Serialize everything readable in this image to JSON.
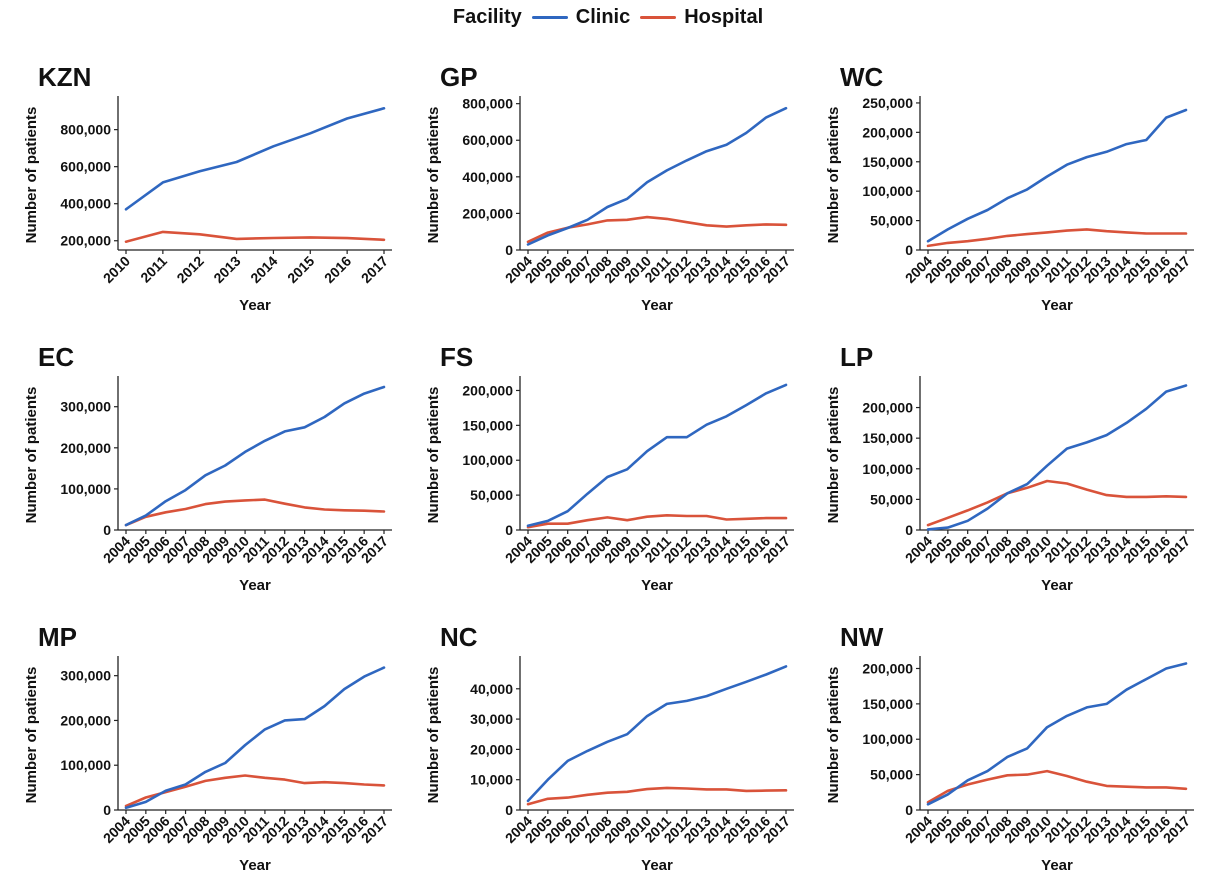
{
  "legend": {
    "title": "Facility",
    "items": [
      {
        "name": "Clinic",
        "color": "#2f67c0"
      },
      {
        "name": "Hospital",
        "color": "#d9533a"
      }
    ]
  },
  "chart_data": [
    {
      "type": "line",
      "title": "KZN",
      "xlabel": "Year",
      "ylabel": "Number of patients",
      "x": [
        2010,
        2011,
        2012,
        2013,
        2014,
        2015,
        2016,
        2017
      ],
      "ylim": [
        150000,
        960000
      ],
      "yticks": [
        200000,
        400000,
        600000,
        800000
      ],
      "ytick_labels": [
        "200,000",
        "400,000",
        "600,000",
        "800,000"
      ],
      "series": [
        {
          "name": "Clinic",
          "values": [
            370000,
            515000,
            575000,
            625000,
            710000,
            780000,
            860000,
            915000
          ]
        },
        {
          "name": "Hospital",
          "values": [
            195000,
            248000,
            235000,
            210000,
            215000,
            218000,
            214000,
            205000
          ]
        }
      ]
    },
    {
      "type": "line",
      "title": "GP",
      "xlabel": "Year",
      "ylabel": "Number of patients",
      "x": [
        2004,
        2005,
        2006,
        2007,
        2008,
        2009,
        2010,
        2011,
        2012,
        2013,
        2014,
        2015,
        2016,
        2017
      ],
      "ylim": [
        0,
        820000
      ],
      "yticks": [
        0,
        200000,
        400000,
        600000,
        800000
      ],
      "ytick_labels": [
        "0",
        "200,000",
        "400,000",
        "600,000",
        "800,000"
      ],
      "series": [
        {
          "name": "Clinic",
          "values": [
            30000,
            80000,
            120000,
            165000,
            235000,
            280000,
            370000,
            435000,
            490000,
            540000,
            575000,
            640000,
            725000,
            775000
          ]
        },
        {
          "name": "Hospital",
          "values": [
            45000,
            95000,
            122000,
            140000,
            162000,
            165000,
            180000,
            170000,
            152000,
            135000,
            128000,
            135000,
            140000,
            138000
          ]
        }
      ]
    },
    {
      "type": "line",
      "title": "WC",
      "xlabel": "Year",
      "ylabel": "Number of patients",
      "x": [
        2004,
        2005,
        2006,
        2007,
        2008,
        2009,
        2010,
        2011,
        2012,
        2013,
        2014,
        2015,
        2016,
        2017
      ],
      "ylim": [
        0,
        255000
      ],
      "yticks": [
        0,
        50000,
        100000,
        150000,
        200000,
        250000
      ],
      "ytick_labels": [
        "0",
        "50,000",
        "100,000",
        "150,000",
        "200,000",
        "250,000"
      ],
      "series": [
        {
          "name": "Clinic",
          "values": [
            15000,
            35000,
            53000,
            68000,
            88000,
            103000,
            125000,
            145000,
            158000,
            167000,
            180000,
            187000,
            225000,
            238000
          ]
        },
        {
          "name": "Hospital",
          "values": [
            7000,
            12000,
            15000,
            19000,
            24000,
            27000,
            30000,
            33000,
            35000,
            32000,
            30000,
            28000,
            28000,
            28000
          ]
        }
      ]
    },
    {
      "type": "line",
      "title": "EC",
      "xlabel": "Year",
      "ylabel": "Number of patients",
      "x": [
        2004,
        2005,
        2006,
        2007,
        2008,
        2009,
        2010,
        2011,
        2012,
        2013,
        2014,
        2015,
        2016,
        2017
      ],
      "ylim": [
        0,
        365000
      ],
      "yticks": [
        0,
        100000,
        200000,
        300000
      ],
      "ytick_labels": [
        "0",
        "100,000",
        "200,000",
        "300,000"
      ],
      "series": [
        {
          "name": "Clinic",
          "values": [
            12000,
            35000,
            70000,
            97000,
            133000,
            157000,
            190000,
            217000,
            240000,
            250000,
            275000,
            308000,
            332000,
            348000
          ]
        },
        {
          "name": "Hospital",
          "values": [
            12000,
            32000,
            43000,
            51000,
            63000,
            69000,
            72000,
            74000,
            64000,
            55000,
            50000,
            48000,
            47000,
            45000
          ]
        }
      ]
    },
    {
      "type": "line",
      "title": "FS",
      "xlabel": "Year",
      "ylabel": "Number of patients",
      "x": [
        2004,
        2005,
        2006,
        2007,
        2008,
        2009,
        2010,
        2011,
        2012,
        2013,
        2014,
        2015,
        2016,
        2017
      ],
      "ylim": [
        0,
        215000
      ],
      "yticks": [
        0,
        50000,
        100000,
        150000,
        200000
      ],
      "ytick_labels": [
        "0",
        "50,000",
        "100,000",
        "150,000",
        "200,000"
      ],
      "series": [
        {
          "name": "Clinic",
          "values": [
            6000,
            13000,
            27000,
            52000,
            76000,
            87000,
            113000,
            133000,
            133000,
            151000,
            163000,
            179000,
            196000,
            208000
          ]
        },
        {
          "name": "Hospital",
          "values": [
            4000,
            9000,
            9000,
            14000,
            18000,
            14000,
            19000,
            21000,
            20000,
            20000,
            15000,
            16000,
            17000,
            17000
          ]
        }
      ]
    },
    {
      "type": "line",
      "title": "LP",
      "xlabel": "Year",
      "ylabel": "Number of patients",
      "x": [
        2004,
        2005,
        2006,
        2007,
        2008,
        2009,
        2010,
        2011,
        2012,
        2013,
        2014,
        2015,
        2016,
        2017
      ],
      "ylim": [
        0,
        245000
      ],
      "yticks": [
        0,
        50000,
        100000,
        150000,
        200000
      ],
      "ytick_labels": [
        "0",
        "50,000",
        "100,000",
        "150,000",
        "200,000"
      ],
      "series": [
        {
          "name": "Clinic",
          "values": [
            1000,
            4000,
            15000,
            35000,
            60000,
            75000,
            105000,
            133000,
            143000,
            155000,
            175000,
            198000,
            226000,
            236000
          ]
        },
        {
          "name": "Hospital",
          "values": [
            8000,
            20000,
            32000,
            45000,
            60000,
            69000,
            80000,
            76000,
            66000,
            57000,
            54000,
            54000,
            55000,
            54000
          ]
        }
      ]
    },
    {
      "type": "line",
      "title": "MP",
      "xlabel": "Year",
      "ylabel": "Number of patients",
      "x": [
        2004,
        2005,
        2006,
        2007,
        2008,
        2009,
        2010,
        2011,
        2012,
        2013,
        2014,
        2015,
        2016,
        2017
      ],
      "ylim": [
        0,
        335000
      ],
      "yticks": [
        0,
        100000,
        200000,
        300000
      ],
      "ytick_labels": [
        "0",
        "100,000",
        "200,000",
        "300,000"
      ],
      "series": [
        {
          "name": "Clinic",
          "values": [
            5000,
            18000,
            43000,
            57000,
            85000,
            105000,
            145000,
            180000,
            200000,
            203000,
            232000,
            270000,
            298000,
            318000
          ]
        },
        {
          "name": "Hospital",
          "values": [
            9000,
            28000,
            40000,
            52000,
            65000,
            72000,
            77000,
            72000,
            68000,
            60000,
            62000,
            60000,
            57000,
            55000
          ]
        }
      ]
    },
    {
      "type": "line",
      "title": "NC",
      "xlabel": "Year",
      "ylabel": "Number of patients",
      "x": [
        2004,
        2005,
        2006,
        2007,
        2008,
        2009,
        2010,
        2011,
        2012,
        2013,
        2014,
        2015,
        2016,
        2017
      ],
      "ylim": [
        0,
        49500
      ],
      "yticks": [
        0,
        10000,
        20000,
        30000,
        40000
      ],
      "ytick_labels": [
        "0",
        "10,000",
        "20,000",
        "30,000",
        "40,000"
      ],
      "series": [
        {
          "name": "Clinic",
          "values": [
            3000,
            10000,
            16200,
            19500,
            22500,
            25000,
            31000,
            35000,
            36000,
            37600,
            40000,
            42300,
            44700,
            47400
          ]
        },
        {
          "name": "Hospital",
          "values": [
            1900,
            3700,
            4100,
            5000,
            5700,
            6000,
            6900,
            7300,
            7100,
            6800,
            6800,
            6300,
            6400,
            6500
          ]
        }
      ]
    },
    {
      "type": "line",
      "title": "NW",
      "xlabel": "Year",
      "ylabel": "Number of patients",
      "x": [
        2004,
        2005,
        2006,
        2007,
        2008,
        2009,
        2010,
        2011,
        2012,
        2013,
        2014,
        2015,
        2016,
        2017
      ],
      "ylim": [
        0,
        212000
      ],
      "yticks": [
        0,
        50000,
        100000,
        150000,
        200000
      ],
      "ytick_labels": [
        "0",
        "50,000",
        "100,000",
        "150,000",
        "200,000"
      ],
      "series": [
        {
          "name": "Clinic",
          "values": [
            8000,
            22000,
            42000,
            55000,
            75000,
            87000,
            117000,
            133000,
            145000,
            150000,
            170000,
            185000,
            200000,
            207000
          ]
        },
        {
          "name": "Hospital",
          "values": [
            11000,
            27000,
            36000,
            43000,
            49000,
            50000,
            55000,
            48000,
            40000,
            34000,
            33000,
            32000,
            32000,
            30000
          ]
        }
      ]
    }
  ]
}
